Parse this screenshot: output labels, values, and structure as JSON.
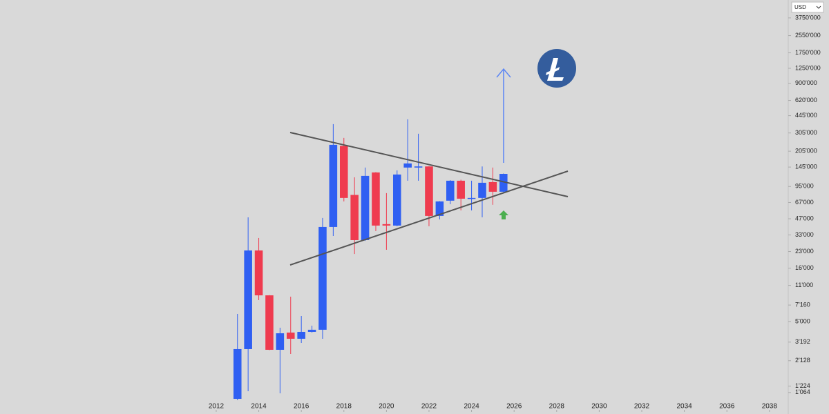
{
  "currency": "USD",
  "chart_data": {
    "type": "candlestick",
    "log_scale": true,
    "up_color": "#2f5ff2",
    "down_color": "#ef3b4f",
    "x": [
      2013.0,
      2013.5,
      2014.0,
      2014.5,
      2015.0,
      2015.5,
      2016.0,
      2016.5,
      2017.0,
      2017.5,
      2018.0,
      2018.5,
      2019.0,
      2019.5,
      2020.0,
      2020.5,
      2021.0,
      2021.5,
      2022.0,
      2022.5,
      2023.0,
      2023.5,
      2024.0,
      2024.5,
      2025.0,
      2025.5
    ],
    "open": [
      927,
      2740,
      23550,
      8850,
      2700,
      3930,
      3435,
      3990,
      4180,
      39300,
      230000,
      79000,
      29500,
      129000,
      41800,
      40500,
      143500,
      143500,
      147000,
      50000,
      69700,
      107700,
      72800,
      74000,
      104500,
      84700
    ],
    "high": [
      5900,
      48500,
      30900,
      8900,
      4370,
      8600,
      5640,
      4570,
      47800,
      370000,
      274000,
      116000,
      143500,
      130000,
      82200,
      135000,
      411000,
      300000,
      148000,
      69000,
      109000,
      110000,
      107700,
      147000,
      143500,
      126000
    ],
    "low": [
      900,
      1094,
      7970,
      2680,
      1045,
      2465,
      3135,
      3930,
      3435,
      32300,
      68600,
      21800,
      29000,
      35900,
      23900,
      39900,
      107700,
      107700,
      39900,
      46300,
      64600,
      56400,
      56400,
      48500,
      63700,
      84000
    ],
    "close": [
      2740,
      23550,
      8850,
      2700,
      3870,
      3435,
      3990,
      4180,
      39300,
      235500,
      74000,
      29500,
      119700,
      40500,
      40500,
      123300,
      157000,
      147000,
      50000,
      68600,
      107700,
      72800,
      74000,
      103000,
      84700,
      125000
    ],
    "xlim": [
      2001.84,
      2038.85
    ],
    "xticks": [
      2012,
      2014,
      2016,
      2018,
      2020,
      2022,
      2024,
      2026,
      2028,
      2030,
      2032,
      2034,
      2036,
      2038
    ],
    "ylim": [
      774,
      5060000
    ],
    "yticks": [
      {
        "value": 3750000,
        "label": "3750'000"
      },
      {
        "value": 2550000,
        "label": "2550'000"
      },
      {
        "value": 1750000,
        "label": "1750'000"
      },
      {
        "value": 1250000,
        "label": "1250'000"
      },
      {
        "value": 900000,
        "label": "900'000"
      },
      {
        "value": 620000,
        "label": "620'000"
      },
      {
        "value": 445000,
        "label": "445'000"
      },
      {
        "value": 305000,
        "label": "305'000"
      },
      {
        "value": 205000,
        "label": "205'000"
      },
      {
        "value": 145000,
        "label": "145'000"
      },
      {
        "value": 95000,
        "label": "95'000"
      },
      {
        "value": 67000,
        "label": "67'000"
      },
      {
        "value": 47000,
        "label": "47'000"
      },
      {
        "value": 33000,
        "label": "33'000"
      },
      {
        "value": 23000,
        "label": "23'000"
      },
      {
        "value": 16000,
        "label": "16'000"
      },
      {
        "value": 11000,
        "label": "11'000"
      },
      {
        "value": 7160,
        "label": "7'160"
      },
      {
        "value": 5000,
        "label": "5'000"
      },
      {
        "value": 3192,
        "label": "3'192"
      },
      {
        "value": 2128,
        "label": "2'128"
      },
      {
        "value": 1224,
        "label": "1'224"
      },
      {
        "value": 1064,
        "label": "1'064"
      }
    ]
  }
}
